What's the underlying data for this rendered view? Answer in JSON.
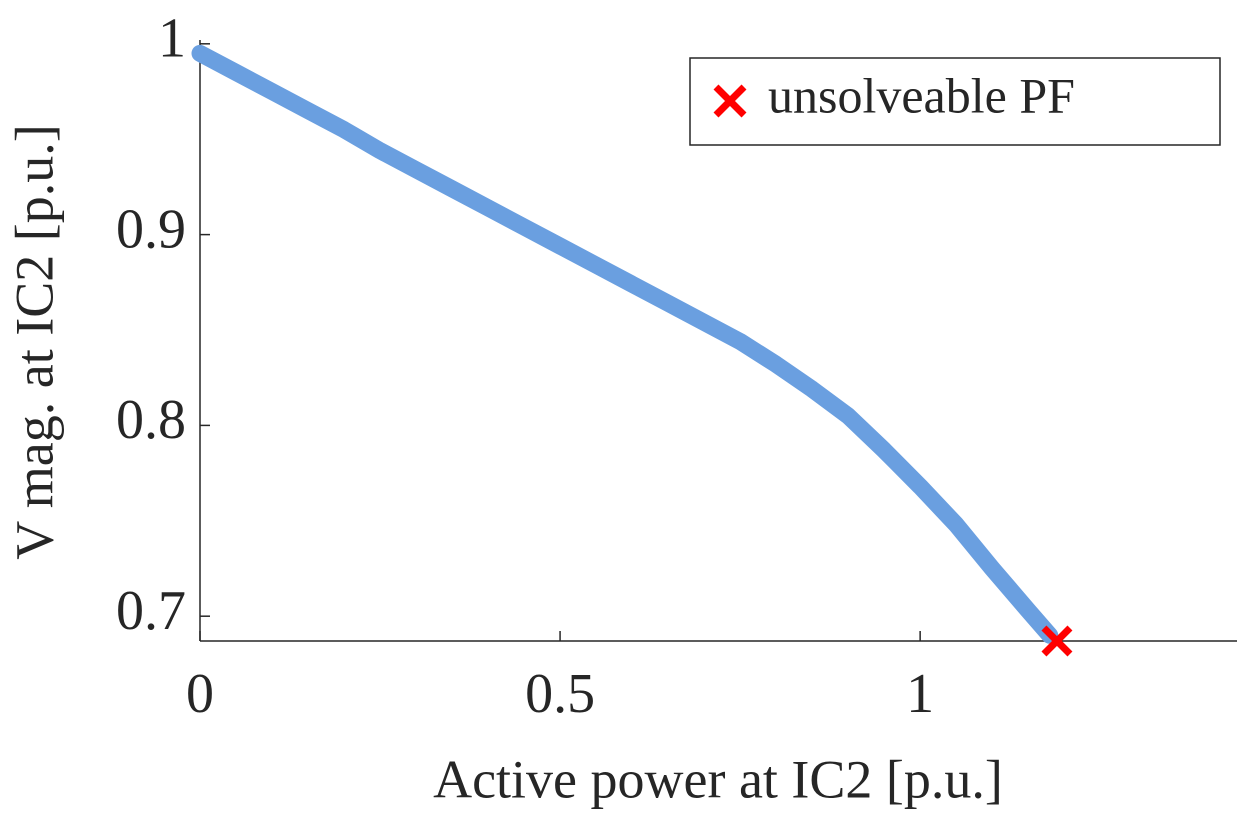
{
  "chart_data": {
    "type": "line",
    "xlabel": "Active power at IC2 [p.u.]",
    "ylabel": "V mag. at IC2 [p.u.]",
    "xlim": [
      0,
      1.44
    ],
    "ylim": [
      0.687,
      1.002
    ],
    "xticks": [
      0,
      0.5,
      1
    ],
    "yticks": [
      0.7,
      0.8,
      0.9,
      1
    ],
    "grid": false,
    "legend": "upper right",
    "series": [
      {
        "color": "#6a9fe0",
        "marker": "circle",
        "x": [
          0,
          0.05,
          0.1,
          0.15,
          0.2,
          0.25,
          0.3,
          0.35,
          0.4,
          0.45,
          0.5,
          0.55,
          0.6,
          0.65,
          0.7,
          0.75,
          0.8,
          0.85,
          0.9,
          0.95,
          1.0,
          1.05,
          1.1,
          1.15,
          1.18
        ],
        "values": [
          0.995,
          0.985,
          0.975,
          0.965,
          0.955,
          0.944,
          0.934,
          0.924,
          0.914,
          0.904,
          0.894,
          0.884,
          0.874,
          0.864,
          0.854,
          0.844,
          0.832,
          0.819,
          0.805,
          0.787,
          0.768,
          0.748,
          0.725,
          0.703,
          0.69
        ]
      },
      {
        "name": "unsolveable PF",
        "color": "#ff0000",
        "marker": "x",
        "x": [
          1.19
        ],
        "values": [
          0.687
        ]
      }
    ]
  }
}
